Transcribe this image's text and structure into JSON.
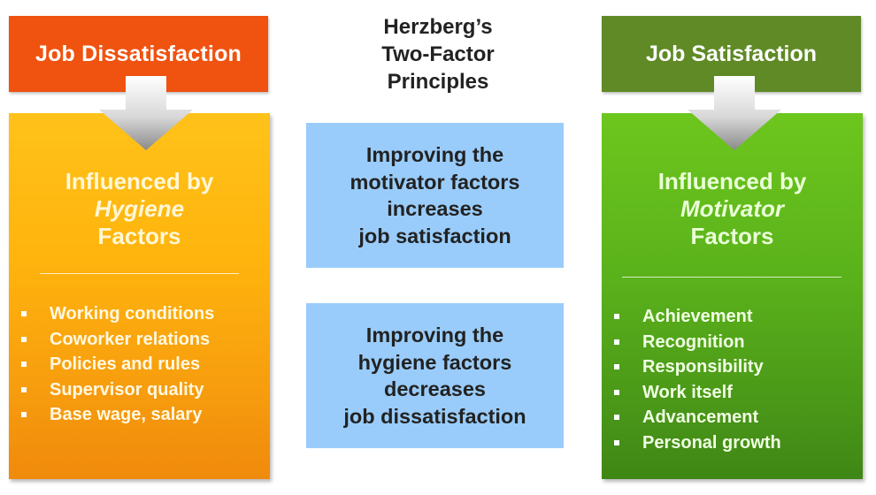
{
  "title": [
    "Herzberg’s",
    "Two-Factor",
    "Principles"
  ],
  "left": {
    "header": "Job Dissatisfaction",
    "influence_line1": "Influenced by",
    "influence_emph": "Hygiene",
    "influence_line3": "Factors",
    "items": [
      "Working conditions",
      "Coworker relations",
      "Policies and rules",
      "Supervisor quality",
      "Base wage, salary"
    ],
    "colors": {
      "header": "#f0520f",
      "panel": "#ffb40d"
    }
  },
  "right": {
    "header": "Job Satisfaction",
    "influence_line1": "Influenced by",
    "influence_emph": "Motivator",
    "influence_line3": "Factors",
    "items": [
      "Achievement",
      "Recognition",
      "Responsibility",
      "Work itself",
      "Advancement",
      "Personal growth"
    ],
    "colors": {
      "header": "#5f8a26",
      "panel": "#5ab21b"
    }
  },
  "center": {
    "box1": [
      "Improving the",
      "motivator factors",
      "increases",
      "job satisfaction"
    ],
    "box2": [
      "Improving the",
      "hygiene factors",
      "decreases",
      "job dissatisfaction"
    ],
    "box_color": "#99ccfa"
  }
}
